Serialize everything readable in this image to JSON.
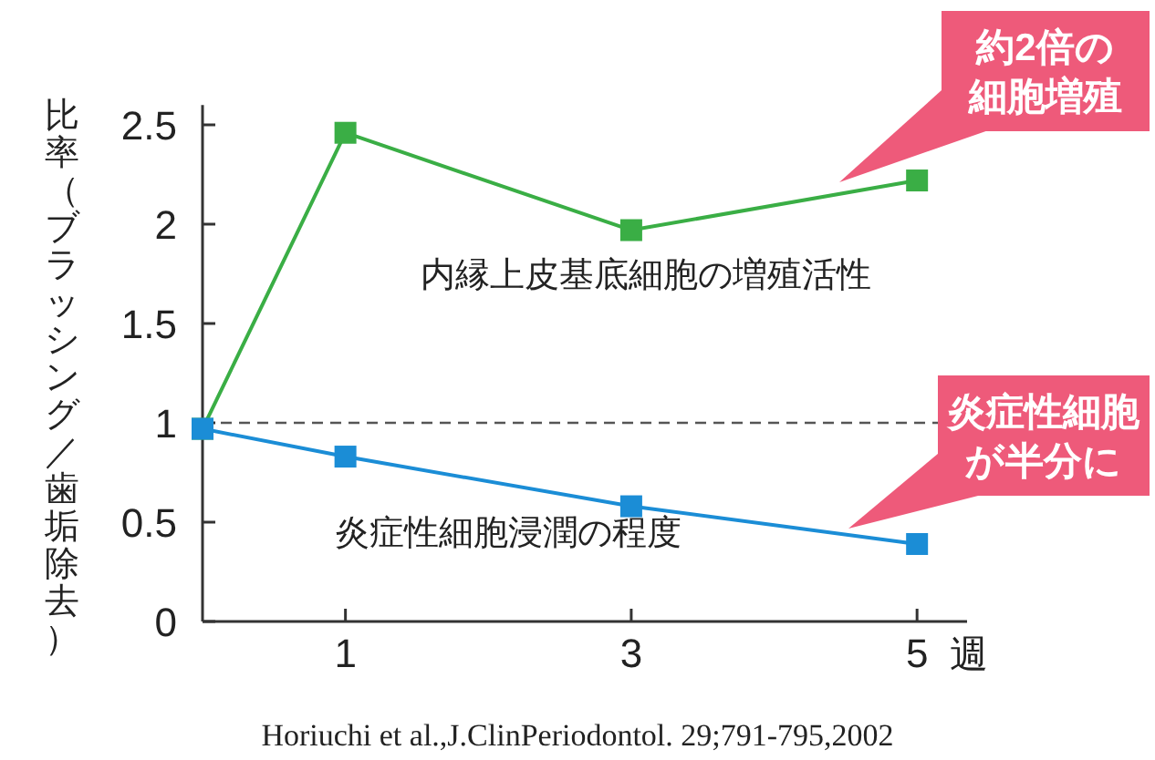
{
  "chart_data": {
    "type": "line",
    "xlabel": "週",
    "ylabel": "比率（ブラッシング／歯垢除去）",
    "x": [
      0,
      1,
      3,
      5
    ],
    "xlim": [
      0,
      5.35
    ],
    "xticks": [
      1,
      3,
      5
    ],
    "ylim": [
      0,
      2.6
    ],
    "yticks": [
      0,
      0.5,
      1,
      1.5,
      2,
      2.5
    ],
    "series": [
      {
        "name": "内縁上皮基底細胞の増殖活性",
        "color": "#3aae45",
        "values": [
          0.97,
          2.46,
          1.97,
          2.22
        ]
      },
      {
        "name": "炎症性細胞浸潤の程度",
        "color": "#1b8dd6",
        "values": [
          0.97,
          0.83,
          0.58,
          0.39
        ]
      }
    ],
    "ref_lines": [
      {
        "axis": "y",
        "value": 1,
        "line_style": "dashed",
        "color": "#555555"
      }
    ],
    "marker": "square",
    "line_style": "solid",
    "annotations": [
      "約2倍の細胞増殖",
      "炎症性細胞が半分に",
      "Horiuchi et al.,J.ClinPeriodontol. 29;791-795,2002"
    ]
  }
}
